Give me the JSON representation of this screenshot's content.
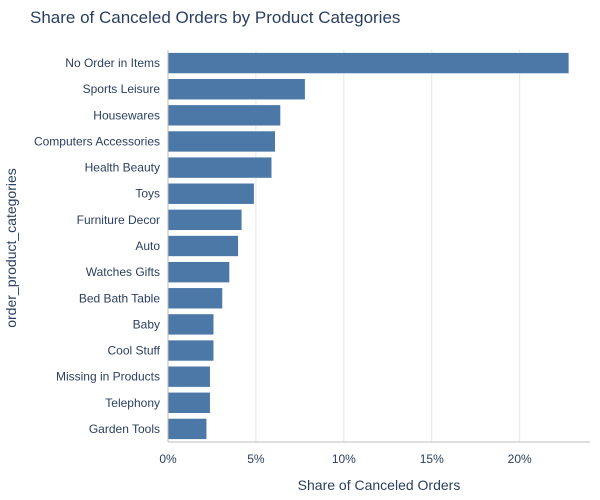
{
  "chart_data": {
    "type": "bar",
    "orientation": "horizontal",
    "title": "Share of Canceled Orders by Product Categories",
    "xlabel": "Share of Canceled Orders",
    "ylabel": "order_product_categories",
    "xlim": [
      0,
      24
    ],
    "x_ticks": [
      0,
      5,
      10,
      15,
      20
    ],
    "x_tick_labels": [
      "0%",
      "5%",
      "10%",
      "15%",
      "20%"
    ],
    "grid": true,
    "bar_color": "#4c78a8",
    "categories": [
      "No Order in Items",
      "Sports Leisure",
      "Housewares",
      "Computers Accessories",
      "Health Beauty",
      "Toys",
      "Furniture Decor",
      "Auto",
      "Watches Gifts",
      "Bed Bath Table",
      "Baby",
      "Cool Stuff",
      "Missing in Products",
      "Telephony",
      "Garden Tools"
    ],
    "values": [
      22.8,
      7.8,
      6.4,
      6.1,
      5.9,
      4.9,
      4.2,
      4.0,
      3.5,
      3.1,
      2.6,
      2.6,
      2.4,
      2.4,
      2.2
    ]
  }
}
